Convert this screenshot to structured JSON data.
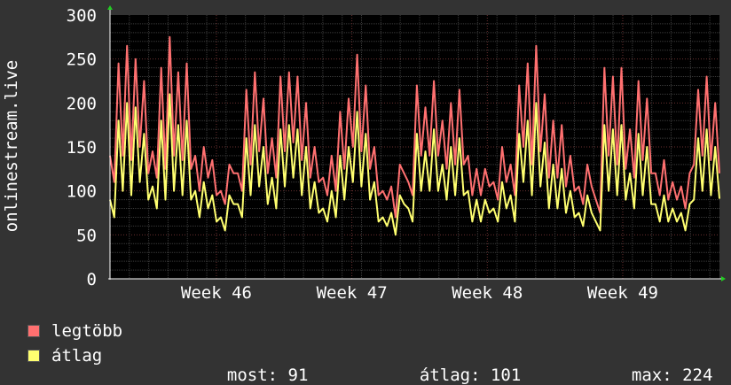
{
  "chart_data": {
    "type": "line",
    "ylabel": "onlinestream.live",
    "ylim": [
      0,
      300
    ],
    "yticks": [
      0,
      50,
      100,
      150,
      200,
      250,
      300
    ],
    "xticks": [
      "Week 46",
      "Week 47",
      "Week 48",
      "Week 49"
    ],
    "grid": true,
    "x_unit": "day",
    "x_range_days": [
      0,
      31.5
    ],
    "xtick_days": [
      5.5,
      12.5,
      19.5,
      26.5
    ],
    "series": [
      {
        "name": "legtöbb",
        "color": "#ff7070",
        "values": [
          140,
          110,
          245,
          140,
          265,
          135,
          250,
          150,
          225,
          120,
          145,
          115,
          240,
          125,
          275,
          140,
          235,
          135,
          245,
          125,
          140,
          100,
          150,
          115,
          135,
          95,
          100,
          85,
          130,
          120,
          120,
          100,
          215,
          130,
          235,
          145,
          205,
          120,
          160,
          115,
          230,
          145,
          235,
          155,
          230,
          135,
          200,
          115,
          150,
          110,
          115,
          95,
          140,
          100,
          190,
          125,
          205,
          150,
          255,
          145,
          220,
          125,
          150,
          95,
          100,
          90,
          105,
          70,
          130,
          120,
          110,
          95,
          220,
          140,
          195,
          140,
          225,
          140,
          180,
          125,
          200,
          130,
          215,
          130,
          140,
          95,
          125,
          95,
          125,
          105,
          110,
          90,
          150,
          110,
          130,
          95,
          220,
          150,
          245,
          130,
          265,
          145,
          210,
          115,
          180,
          115,
          175,
          105,
          140,
          100,
          105,
          85,
          130,
          105,
          90,
          75,
          240,
          140,
          230,
          130,
          240,
          125,
          170,
          115,
          225,
          135,
          205,
          120,
          120,
          95,
          135,
          90,
          110,
          90,
          105,
          80,
          120,
          130,
          215,
          140,
          230,
          135,
          200,
          120
        ]
      },
      {
        "name": "átlag",
        "color": "#ffff70",
        "values": [
          90,
          70,
          180,
          100,
          200,
          95,
          195,
          110,
          165,
          90,
          105,
          80,
          180,
          90,
          210,
          100,
          175,
          95,
          180,
          90,
          100,
          70,
          110,
          80,
          95,
          65,
          70,
          55,
          95,
          85,
          85,
          70,
          160,
          95,
          175,
          105,
          150,
          85,
          115,
          80,
          170,
          105,
          175,
          115,
          170,
          95,
          150,
          80,
          110,
          75,
          80,
          65,
          100,
          70,
          140,
          90,
          150,
          110,
          190,
          105,
          165,
          90,
          110,
          65,
          70,
          60,
          75,
          50,
          95,
          85,
          80,
          65,
          165,
          100,
          145,
          100,
          170,
          100,
          130,
          90,
          150,
          95,
          160,
          95,
          100,
          65,
          90,
          65,
          90,
          75,
          80,
          65,
          110,
          80,
          95,
          65,
          165,
          110,
          180,
          95,
          200,
          105,
          155,
          80,
          130,
          80,
          125,
          75,
          100,
          70,
          75,
          60,
          95,
          75,
          65,
          55,
          175,
          100,
          170,
          95,
          175,
          90,
          120,
          80,
          165,
          95,
          150,
          85,
          85,
          65,
          95,
          65,
          80,
          65,
          75,
          55,
          85,
          90,
          160,
          100,
          170,
          95,
          150,
          91
        ]
      }
    ],
    "stats": {
      "most_label": "most:",
      "most_value": "91",
      "avg_label": "átlag:",
      "avg_value": "101",
      "max_label": "max:",
      "max_value": "224"
    }
  }
}
